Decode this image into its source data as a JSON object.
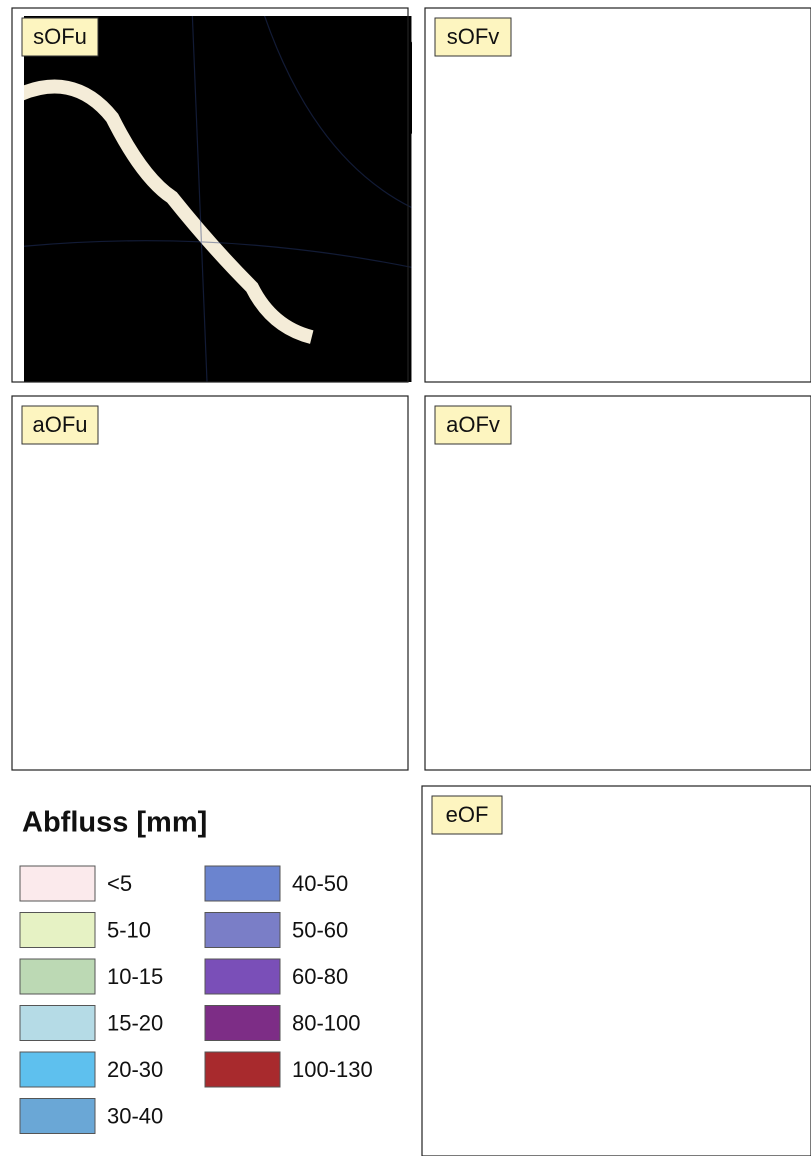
{
  "panels": [
    {
      "label": "sOFu"
    },
    {
      "label": "sOFv"
    },
    {
      "label": "aOFu"
    },
    {
      "label": "aOFv"
    },
    {
      "label": "eOF"
    }
  ],
  "legend": {
    "title": "Abfluss [mm]",
    "items": [
      {
        "label": "<5",
        "color": "#fbeaec"
      },
      {
        "label": "5-10",
        "color": "#e6f2c4"
      },
      {
        "label": "10-15",
        "color": "#bcd9b4"
      },
      {
        "label": "15-20",
        "color": "#b5dbe6"
      },
      {
        "label": "20-30",
        "color": "#5ec0ee"
      },
      {
        "label": "30-40",
        "color": "#6aa7d6"
      },
      {
        "label": "40-50",
        "color": "#6b84cf"
      },
      {
        "label": "50-60",
        "color": "#7a7ec7"
      },
      {
        "label": "60-80",
        "color": "#7a4fb8"
      },
      {
        "label": "80-100",
        "color": "#7d2d86"
      },
      {
        "label": "100-130",
        "color": "#a82a2d"
      }
    ]
  }
}
